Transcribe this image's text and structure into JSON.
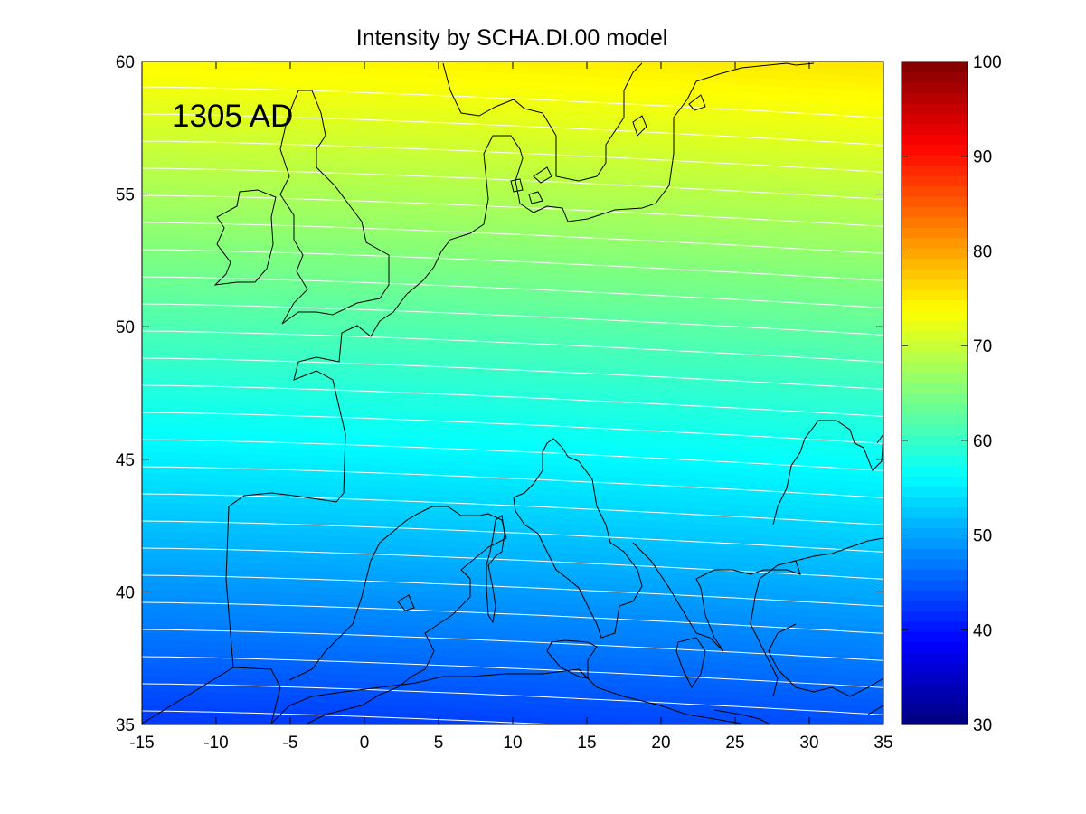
{
  "title": "Intensity by SCHA.DI.00 model",
  "epoch_label": "1305 AD",
  "map": {
    "x_ticks": [
      "-15",
      "-10",
      "-5",
      "0",
      "5",
      "10",
      "15",
      "20",
      "25",
      "30",
      "35"
    ],
    "y_ticks": [
      "35",
      "40",
      "45",
      "50",
      "55",
      "60"
    ],
    "xlim": [
      -15,
      35
    ],
    "ylim": [
      35,
      60
    ],
    "contour_color": "#ffffff",
    "coastline_color": "#000000"
  },
  "colorbar": {
    "colormap": "jet",
    "range": [
      30,
      100
    ],
    "ticks": [
      "30",
      "40",
      "50",
      "60",
      "70",
      "80",
      "90",
      "100"
    ]
  }
}
